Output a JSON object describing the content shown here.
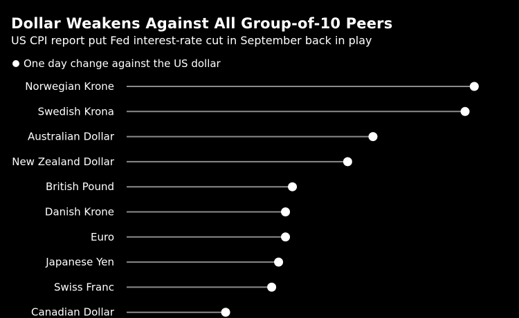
{
  "header": {
    "title": "Dollar Weakens Against All Group-of-10 Peers",
    "subtitle": "US CPI report put Fed interest-rate cut in September back in play"
  },
  "legend": {
    "label": "One day change against the US dollar"
  },
  "colors": {
    "background": "#000000",
    "text": "#ffffff",
    "line": "#8c8c8c",
    "dot": "#ffffff"
  },
  "chart_data": {
    "type": "lollipop",
    "categories": [
      "Norwegian Krone",
      "Swedish Krona",
      "Australian Dollar",
      "New Zealand Dollar",
      "British Pound",
      "Danish Krone",
      "Euro",
      "Japanese Yen",
      "Swiss Franc",
      "Canadian Dollar"
    ],
    "series": [
      {
        "name": "One day change against the US dollar",
        "values": [
          1.51,
          1.47,
          1.07,
          0.96,
          0.72,
          0.69,
          0.69,
          0.66,
          0.63,
          0.43
        ]
      }
    ],
    "xlim": [
      0,
      1.56
    ],
    "grid": false,
    "legend_position": "top-left"
  }
}
